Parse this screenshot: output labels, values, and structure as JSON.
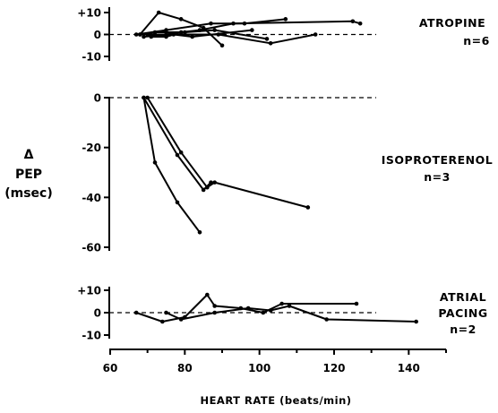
{
  "chart_data": {
    "type": "line",
    "xlabel": "HEART RATE (beats/min)",
    "ylabel": [
      "Δ",
      "PEP",
      "(msec)"
    ],
    "x_ticks": [
      "60",
      "80",
      "100",
      "120",
      "140"
    ],
    "xlim": [
      60,
      150
    ],
    "grid": false,
    "panels": [
      {
        "label": [
          "ATROPINE",
          "n=6"
        ],
        "ylim": [
          -12,
          12
        ],
        "y_ticks": [
          10,
          0,
          -10
        ],
        "y_tick_labels": [
          "+10",
          "0",
          "-10"
        ],
        "reference_line": 0,
        "series": [
          {
            "x": [
              68,
              73,
              79,
              85,
              90
            ],
            "y": [
              0,
              10,
              7,
              3,
              -5
            ]
          },
          {
            "x": [
              67,
              75,
              87,
              96,
              107
            ],
            "y": [
              0,
              2,
              5,
              5,
              7
            ]
          },
          {
            "x": [
              68,
              72,
              80,
              88,
              102
            ],
            "y": [
              0,
              1,
              1,
              2,
              -2
            ]
          },
          {
            "x": [
              69,
              76,
              80,
              89,
              103,
              115
            ],
            "y": [
              -1,
              0,
              0,
              0,
              -4,
              0
            ]
          },
          {
            "x": [
              70,
              75,
              79,
              84,
              93,
              125,
              127
            ],
            "y": [
              0,
              0,
              1,
              2,
              5,
              6,
              5
            ]
          },
          {
            "x": [
              71,
              75,
              77,
              82,
              98
            ],
            "y": [
              -1,
              -1,
              0,
              -1,
              2
            ]
          }
        ]
      },
      {
        "label": [
          "ISOPROTERENOL",
          "n=3"
        ],
        "ylim": [
          -63,
          2
        ],
        "y_ticks": [
          0,
          -20,
          -40,
          -60
        ],
        "y_tick_labels": [
          "0",
          "-20",
          "-40",
          "-60"
        ],
        "reference_line": 0,
        "series": [
          {
            "x": [
              69,
              72,
              78,
              84
            ],
            "y": [
              0,
              -26,
              -42,
              -54
            ]
          },
          {
            "x": [
              69,
              78,
              85,
              87
            ],
            "y": [
              0,
              -23,
              -37,
              -34
            ]
          },
          {
            "x": [
              70,
              79,
              86,
              88,
              113
            ],
            "y": [
              0,
              -22,
              -36,
              -34,
              -44
            ]
          }
        ]
      },
      {
        "label": [
          "ATRIAL",
          "PACING",
          "n=2"
        ],
        "ylim": [
          -12,
          12
        ],
        "y_ticks": [
          10,
          0,
          -10
        ],
        "y_tick_labels": [
          "+10",
          "0",
          "-10"
        ],
        "reference_line": 0,
        "series": [
          {
            "x": [
              67,
              74,
              80,
              86,
              88,
              95,
              101,
              106,
              126
            ],
            "y": [
              0,
              -4,
              -2,
              8,
              3,
              2,
              0,
              4,
              4
            ]
          },
          {
            "x": [
              75,
              79,
              88,
              97,
              103,
              108,
              118,
              142
            ],
            "y": [
              0,
              -3,
              0,
              2,
              1,
              3,
              -3,
              -4
            ]
          }
        ]
      }
    ]
  }
}
